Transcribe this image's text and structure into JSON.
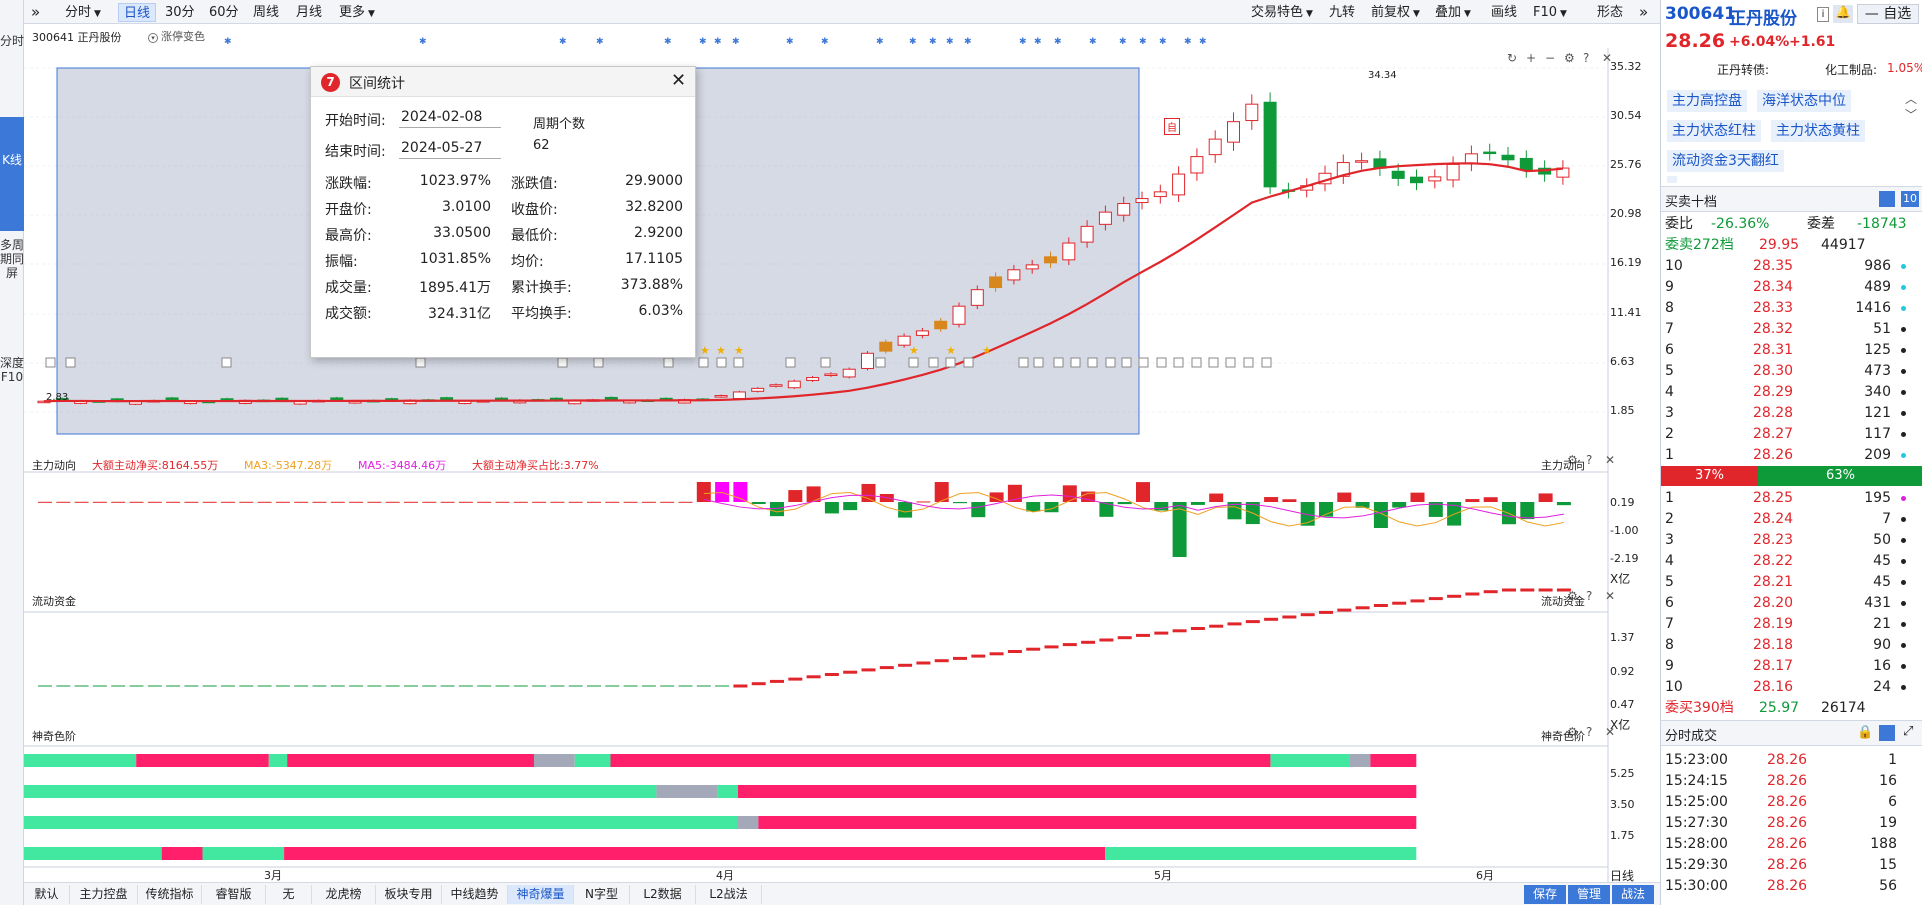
{
  "leftbar": {
    "items": [
      "分时",
      "K线",
      "多周期同屏",
      "深度F10"
    ]
  },
  "toolbar": {
    "left": [
      "分时",
      "日线",
      "30分",
      "60分",
      "周线",
      "月线",
      "更多"
    ],
    "right": [
      "交易特色",
      "九转",
      "前复权",
      "叠加",
      "画线",
      "F10",
      "形态"
    ],
    "selected": "日线"
  },
  "chart": {
    "stock_label": "300641 正丹股份",
    "color_switch": "涨停变色",
    "yticks": [
      "35.32",
      "30.54",
      "25.76",
      "20.98",
      "16.19",
      "11.41",
      "6.63",
      "1.85"
    ],
    "low_label": "2.83",
    "high_label": "34.34",
    "marker_zi": "自",
    "xticks": [
      "3月",
      "4月",
      "5月",
      "6月"
    ],
    "period_label": "日线"
  },
  "indicator1": {
    "title": "主力动向",
    "legend_net": "大额主动净买:8164.55万",
    "legend_ma3": "MA3:-5347.28万",
    "legend_ma5": "MA5:-3484.46万",
    "legend_pct": "大额主动净买占比:3.77%",
    "right_title": "主力动向",
    "yticks": [
      "0.19",
      "-1.00",
      "-2.19"
    ],
    "unit": "X亿"
  },
  "indicator2": {
    "title": "流动资金",
    "right_title": "流动资金",
    "yticks": [
      "1.37",
      "0.92",
      "0.47"
    ],
    "unit": "X亿"
  },
  "indicator3": {
    "title": "神奇色阶",
    "right_title": "神奇色阶",
    "yticks": [
      "5.25",
      "3.50",
      "1.75"
    ]
  },
  "popup": {
    "title": "区间统计",
    "start_label": "开始时间:",
    "start_value": "2024-02-08",
    "end_label": "结束时间:",
    "end_value": "2024-05-27",
    "period_label": "周期个数",
    "period_value": "62",
    "stats": [
      [
        "涨跌幅:",
        "1023.97%",
        "涨跌值:",
        "29.9000"
      ],
      [
        "开盘价:",
        "3.0100",
        "收盘价:",
        "32.8200"
      ],
      [
        "最高价:",
        "33.0500",
        "最低价:",
        "2.9200"
      ],
      [
        "振幅:",
        "1031.85%",
        "均价:",
        "17.1105"
      ],
      [
        "成交量:",
        "1895.41万",
        "累计换手:",
        "373.88%"
      ],
      [
        "成交额:",
        "324.31亿",
        "平均换手:",
        "6.03%"
      ]
    ]
  },
  "bottombar": {
    "tabs": [
      "默认",
      "主力控盘",
      "传统指标",
      "睿智版",
      "无",
      "龙虎榜",
      "板块专用",
      "中线趋势",
      "神奇爆量",
      "N字型",
      "L2数据",
      "L2战法"
    ],
    "selected": "神奇爆量",
    "right": [
      "保存",
      "管理",
      "战法"
    ]
  },
  "quote": {
    "code": "300641",
    "name": "正丹股份",
    "self_select": "自选",
    "price": "28.26",
    "change_pct": "+6.04%",
    "change": "+1.61",
    "bond_label": "正丹转债:",
    "sector": "化工制品:",
    "sector_pct": "1.05%",
    "tags": [
      "主力高控盘",
      "海洋状态中位",
      "主力状态红柱",
      "主力状态黄柱",
      "流动资金3天翻红"
    ],
    "depth_title": "买卖十档",
    "wb_label": "委比",
    "wb_value": "-26.36%",
    "wc_label": "委差",
    "wc_value": "-18743",
    "sell_total_label": "委卖272档",
    "sell_total_price": "29.95",
    "sell_total_vol": "44917",
    "asks": [
      [
        "10",
        "28.35",
        "986"
      ],
      [
        "9",
        "28.34",
        "489"
      ],
      [
        "8",
        "28.33",
        "1416"
      ],
      [
        "7",
        "28.32",
        "51"
      ],
      [
        "6",
        "28.31",
        "125"
      ],
      [
        "5",
        "28.30",
        "473"
      ],
      [
        "4",
        "28.29",
        "340"
      ],
      [
        "3",
        "28.28",
        "121"
      ],
      [
        "2",
        "28.27",
        "117"
      ],
      [
        "1",
        "28.26",
        "209"
      ]
    ],
    "ratio_sell": "37%",
    "ratio_buy": "63%",
    "bids": [
      [
        "1",
        "28.25",
        "195"
      ],
      [
        "2",
        "28.24",
        "7"
      ],
      [
        "3",
        "28.23",
        "50"
      ],
      [
        "4",
        "28.22",
        "45"
      ],
      [
        "5",
        "28.21",
        "45"
      ],
      [
        "6",
        "28.20",
        "431"
      ],
      [
        "7",
        "28.19",
        "21"
      ],
      [
        "8",
        "28.18",
        "90"
      ],
      [
        "9",
        "28.17",
        "16"
      ],
      [
        "10",
        "28.16",
        "24"
      ]
    ],
    "buy_total_label": "委买390档",
    "buy_total_price": "25.97",
    "buy_total_vol": "26174",
    "trades_title": "分时成交",
    "trades": [
      [
        "15:23:00",
        "28.26",
        "1"
      ],
      [
        "15:24:15",
        "28.26",
        "16"
      ],
      [
        "15:25:00",
        "28.26",
        "6"
      ],
      [
        "15:27:30",
        "28.26",
        "19"
      ],
      [
        "15:28:00",
        "28.26",
        "188"
      ],
      [
        "15:29:30",
        "28.26",
        "15"
      ],
      [
        "15:30:00",
        "28.26",
        "56"
      ]
    ]
  },
  "colors": {
    "up": "#e0262b",
    "down": "#0f9a3a",
    "accent": "#3c78d8",
    "pink": "#ff1f6b",
    "mint": "#42e8a0"
  }
}
